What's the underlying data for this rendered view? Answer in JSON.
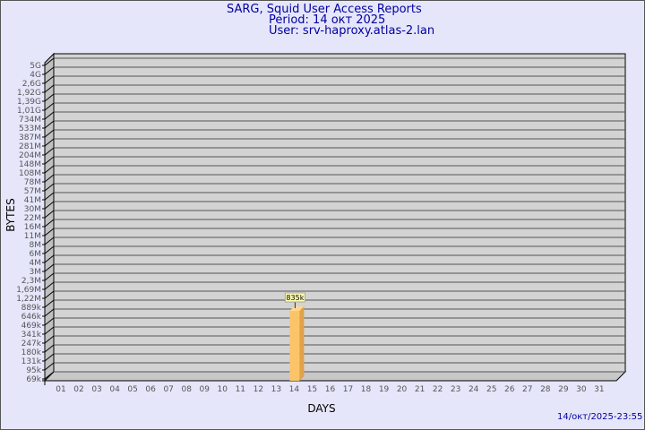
{
  "header": {
    "title": "SARG, Squid User Access Reports",
    "period": "Period: 14 окт 2025",
    "user": "User: srv-haproxy.atlas-2.lan"
  },
  "footer": {
    "timestamp": "14/окт/2025-23:55"
  },
  "chart_data": {
    "type": "bar",
    "title": "",
    "xlabel": "DAYS",
    "ylabel": "BYTES",
    "y_scale": "log",
    "grid": true,
    "y_ticks": [
      "5G",
      "4G",
      "2,6G",
      "1,92G",
      "1,39G",
      "1,01G",
      "734M",
      "533M",
      "387M",
      "281M",
      "204M",
      "148M",
      "108M",
      "78M",
      "57M",
      "41M",
      "30M",
      "22M",
      "16M",
      "11M",
      "8M",
      "6M",
      "4M",
      "3M",
      "2,3M",
      "1,69M",
      "1,22M",
      "889k",
      "646k",
      "469k",
      "341k",
      "247k",
      "180k",
      "131k",
      "95k",
      "69k"
    ],
    "categories": [
      "01",
      "02",
      "03",
      "04",
      "05",
      "06",
      "07",
      "08",
      "09",
      "10",
      "11",
      "12",
      "13",
      "14",
      "15",
      "16",
      "17",
      "18",
      "19",
      "20",
      "21",
      "22",
      "23",
      "24",
      "25",
      "26",
      "27",
      "28",
      "29",
      "30",
      "31"
    ],
    "values": [
      null,
      null,
      null,
      null,
      null,
      null,
      null,
      null,
      null,
      null,
      null,
      null,
      null,
      835000,
      null,
      null,
      null,
      null,
      null,
      null,
      null,
      null,
      null,
      null,
      null,
      null,
      null,
      null,
      null,
      null,
      null
    ],
    "data_labels": {
      "14": "835k"
    },
    "colors": {
      "bar": "#fcc468",
      "bar_side": "#e0a24a",
      "wall": "#d3d3d3",
      "grid": "#555555"
    }
  }
}
